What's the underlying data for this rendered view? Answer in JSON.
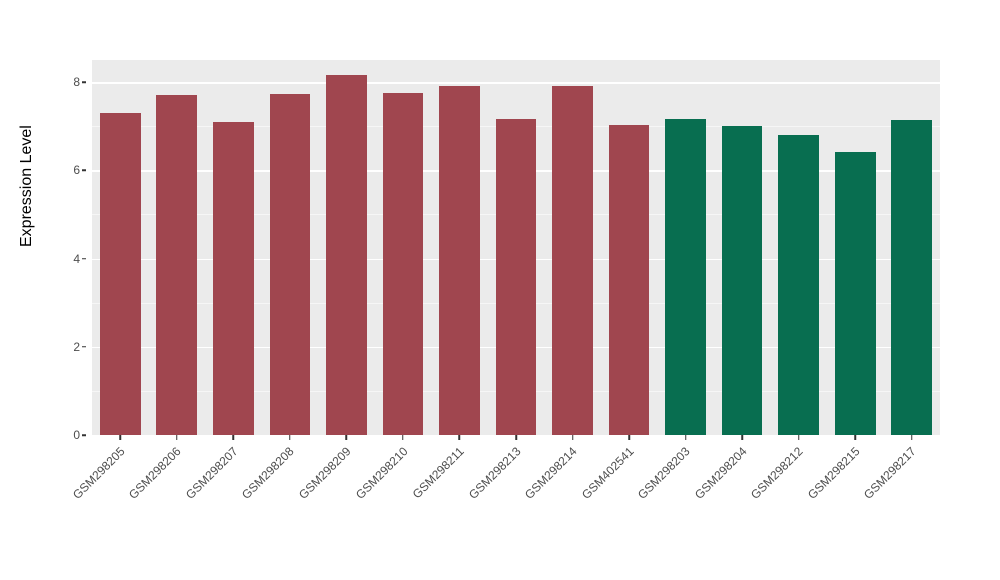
{
  "figure": {
    "panel_background": "#EBEBEB",
    "major_grid_color": "#FFFFFF",
    "tick_label_color": "#4D4D4D"
  },
  "chart_data": {
    "type": "bar",
    "title": "",
    "xlabel": "",
    "ylabel": "Expression Level",
    "ylim": [
      0,
      8.5
    ],
    "yticks": [
      0,
      2,
      4,
      6,
      8
    ],
    "yminor": [
      1,
      3,
      5,
      7
    ],
    "grid": true,
    "legend": "none",
    "categories": [
      "GSM298205",
      "GSM298206",
      "GSM298207",
      "GSM298208",
      "GSM298209",
      "GSM298210",
      "GSM298211",
      "GSM298213",
      "GSM298214",
      "GSM402541",
      "GSM298203",
      "GSM298204",
      "GSM298212",
      "GSM298215",
      "GSM298217"
    ],
    "values": [
      7.3,
      7.7,
      7.1,
      7.72,
      8.17,
      7.75,
      7.9,
      7.17,
      7.9,
      7.02,
      7.17,
      7.0,
      6.8,
      6.42,
      7.15
    ],
    "colors": [
      "#A0464F",
      "#A0464F",
      "#A0464F",
      "#A0464F",
      "#A0464F",
      "#A0464F",
      "#A0464F",
      "#A0464F",
      "#A0464F",
      "#A0464F",
      "#086E50",
      "#086E50",
      "#086E50",
      "#086E50",
      "#086E50"
    ],
    "group_colors": {
      "group1_red": "#A0464F",
      "group2_green": "#086E50"
    }
  }
}
